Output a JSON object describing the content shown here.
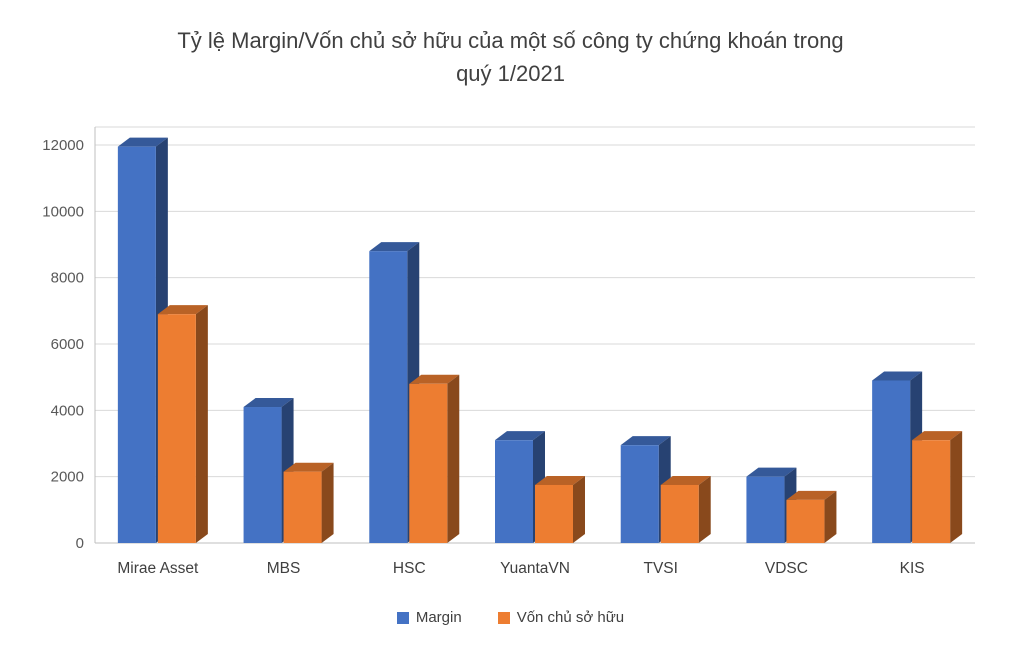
{
  "chart_data": {
    "type": "bar",
    "style": "3d-clustered-column",
    "title": "Tỷ lệ Margin/Vốn chủ sở hữu của một số công ty chứng khoán trong quý 1/2021",
    "title_lines": [
      "Tỷ lệ Margin/Vốn chủ sở hữu của một số công ty chứng khoán trong",
      "quý 1/2021"
    ],
    "categories": [
      "Mirae Asset",
      "MBS",
      "HSC",
      "YuantaVN",
      "TVSI",
      "VDSC",
      "KIS"
    ],
    "series": [
      {
        "name": "Margin",
        "color": "#4472C4",
        "values": [
          11950,
          4100,
          8800,
          3100,
          2950,
          2000,
          4900
        ]
      },
      {
        "name": "Vốn chủ sở hữu",
        "color": "#ED7D31",
        "values": [
          6900,
          2150,
          4800,
          1750,
          1750,
          1300,
          3100
        ]
      }
    ],
    "ylim": [
      0,
      12000
    ],
    "yticks": [
      0,
      2000,
      4000,
      6000,
      8000,
      10000,
      12000
    ],
    "grid": true,
    "legend_position": "bottom"
  },
  "colors": {
    "grid": "#D9D9D9",
    "axis": "#BFBFBF",
    "tick_label": "#595959",
    "title": "#404040",
    "category_label": "#404040",
    "background": "#FFFFFF"
  }
}
